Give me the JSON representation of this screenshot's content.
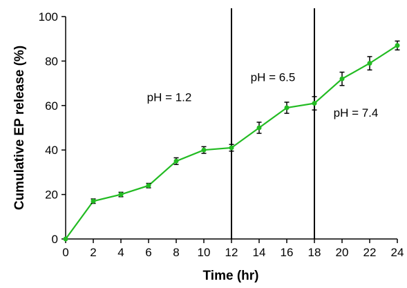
{
  "chart_data": {
    "type": "line",
    "xlabel": "Time (hr)",
    "ylabel": "Cumulative EP release (%)",
    "xlim": [
      0,
      24
    ],
    "ylim": [
      0,
      100
    ],
    "xticks": [
      0,
      2,
      4,
      6,
      8,
      10,
      12,
      14,
      16,
      18,
      20,
      22,
      24
    ],
    "yticks": [
      0,
      20,
      40,
      60,
      80,
      100
    ],
    "grid": false,
    "series": [
      {
        "color": "#22bb22",
        "x": [
          0,
          2,
          4,
          6,
          8,
          10,
          12,
          14,
          16,
          18,
          20,
          22,
          24
        ],
        "y": [
          0,
          17,
          20,
          24,
          35,
          40,
          41,
          50,
          59,
          61,
          72,
          79,
          87
        ],
        "error": [
          0,
          1,
          1,
          1,
          1.5,
          1.5,
          1.5,
          2.5,
          2.5,
          3,
          3,
          3,
          2
        ]
      }
    ],
    "vlines": [
      12,
      18
    ],
    "annotations": [
      {
        "text": "pH = 1.2",
        "x": 7.5,
        "y": 62
      },
      {
        "text": "pH = 6.5",
        "x": 15,
        "y": 71
      },
      {
        "text": "pH = 7.4",
        "x": 21,
        "y": 55
      }
    ]
  }
}
